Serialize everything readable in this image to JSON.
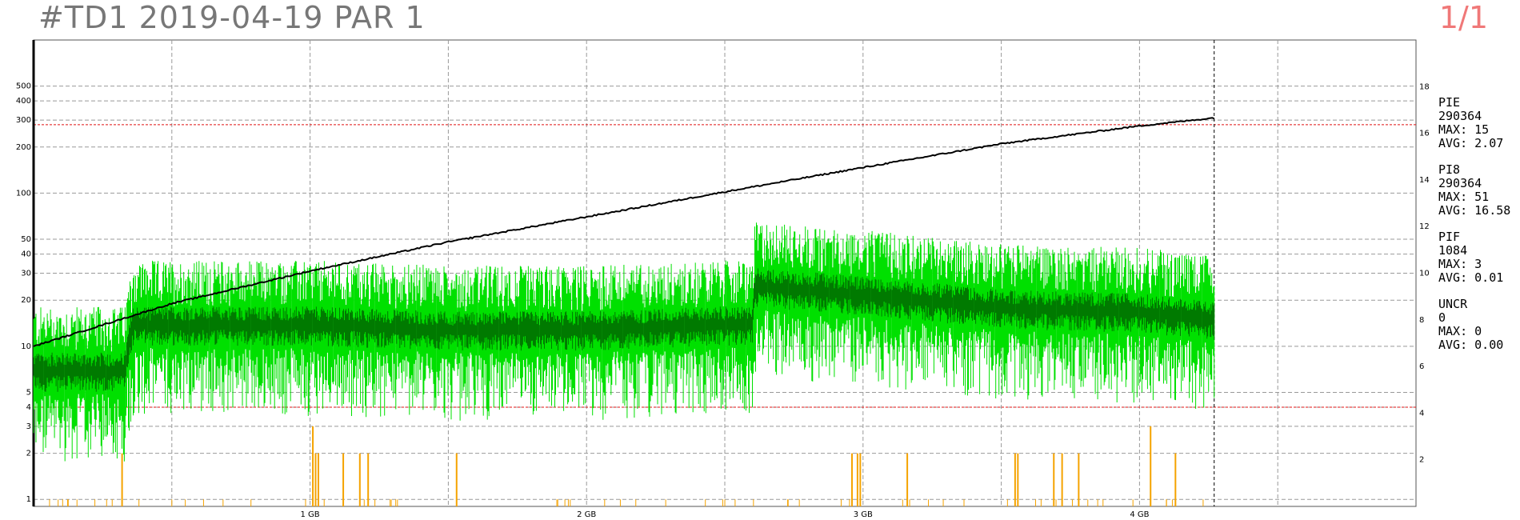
{
  "header": {
    "title": "#TD1 2019-04-19 PAR 1",
    "page": "1/1"
  },
  "stats": [
    {
      "name": "PIE",
      "count": "290364",
      "max": "MAX: 15",
      "avg": "AVG: 2.07"
    },
    {
      "name": "PI8",
      "count": "290364",
      "max": "MAX: 51",
      "avg": "AVG: 16.58"
    },
    {
      "name": "PIF",
      "count": "1084",
      "max": "MAX: 3",
      "avg": "AVG: 0.01"
    },
    {
      "name": "UNCR",
      "count": "0",
      "max": "MAX: 0",
      "avg": "AVG: 0.00"
    }
  ],
  "colors": {
    "pi8": "#00e000",
    "pi8_avg": "#007a00",
    "pif": "#f5a300",
    "speed": "#000000",
    "limit": "#e01010",
    "grid": "#999999"
  },
  "chart_data": {
    "type": "line",
    "x_axis": {
      "unit": "GB",
      "range": [
        0,
        5
      ],
      "ticks": [
        1,
        2,
        3,
        4
      ],
      "tick_labels": [
        "1 GB",
        "2 GB",
        "3 GB",
        "4 GB"
      ],
      "data_end": 4.27
    },
    "y_left": {
      "scale": "log",
      "range": [
        0.9,
        1000
      ],
      "ticks": [
        1,
        2,
        3,
        4,
        5,
        10,
        20,
        30,
        40,
        50,
        100,
        200,
        300,
        400,
        500
      ],
      "tick_labels": [
        "1",
        "2",
        "3",
        "4",
        "5",
        "10",
        "20",
        "30",
        "40",
        "50",
        "100",
        "200",
        "300",
        "400",
        "500"
      ]
    },
    "y_right": {
      "scale": "linear",
      "range": [
        0,
        20
      ],
      "ticks": [
        2,
        4,
        6,
        8,
        10,
        12,
        14,
        16,
        18
      ],
      "tick_labels": [
        "2",
        "4",
        "6",
        "8",
        "10",
        "12",
        "14",
        "16",
        "18"
      ]
    },
    "limits": [
      280,
      4
    ],
    "grid": true,
    "speed_series": {
      "x": [
        0,
        0.5,
        1.0,
        1.5,
        2.0,
        2.5,
        3.0,
        3.5,
        4.0,
        4.27
      ],
      "y": [
        10,
        19,
        31,
        48,
        70,
        102,
        147,
        210,
        275,
        310
      ]
    },
    "pi8_series": {
      "x": [
        0,
        0.33,
        0.36,
        0.5,
        1.0,
        1.5,
        2.0,
        2.5,
        2.6,
        2.61,
        3.0,
        3.5,
        4.0,
        4.27
      ],
      "y": [
        7,
        7,
        14,
        14,
        14,
        13,
        13,
        14,
        14,
        25,
        22,
        18,
        17,
        15
      ]
    },
    "pif_bars": [
      {
        "x": 1.01,
        "v": 3
      },
      {
        "x": 1.02,
        "v": 2
      },
      {
        "x": 1.03,
        "v": 2
      },
      {
        "x": 1.12,
        "v": 2
      },
      {
        "x": 1.18,
        "v": 2
      },
      {
        "x": 1.21,
        "v": 2
      },
      {
        "x": 1.53,
        "v": 2
      },
      {
        "x": 0.32,
        "v": 2
      },
      {
        "x": 2.96,
        "v": 2
      },
      {
        "x": 2.98,
        "v": 2
      },
      {
        "x": 2.99,
        "v": 2
      },
      {
        "x": 3.16,
        "v": 2
      },
      {
        "x": 3.55,
        "v": 2
      },
      {
        "x": 3.56,
        "v": 2
      },
      {
        "x": 3.69,
        "v": 2
      },
      {
        "x": 3.72,
        "v": 2
      },
      {
        "x": 3.78,
        "v": 2
      },
      {
        "x": 4.04,
        "v": 3
      },
      {
        "x": 4.13,
        "v": 2
      }
    ]
  }
}
